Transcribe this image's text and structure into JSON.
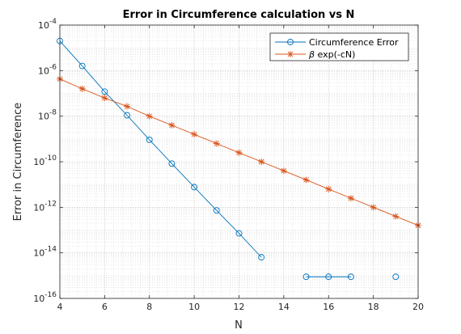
{
  "chart_data": {
    "type": "line",
    "title": "Error in Circumference calculation vs N",
    "xlabel": "N",
    "ylabel": "Error in Circumference",
    "xlim": [
      4,
      20
    ],
    "ylim": [
      1e-16,
      0.0001
    ],
    "yscale": "log",
    "xticks": [
      "4",
      "6",
      "8",
      "10",
      "12",
      "14",
      "16",
      "18",
      "20"
    ],
    "yticks": [
      {
        "base": "10",
        "exp": "-4"
      },
      {
        "base": "10",
        "exp": "-6"
      },
      {
        "base": "10",
        "exp": "-8"
      },
      {
        "base": "10",
        "exp": "-10"
      },
      {
        "base": "10",
        "exp": "-12"
      },
      {
        "base": "10",
        "exp": "-14"
      },
      {
        "base": "10",
        "exp": "-16"
      }
    ],
    "grid": true,
    "minor_grid": true,
    "legend_position": "top-right",
    "series": [
      {
        "name": "Circumference Error",
        "color": "#0072bd",
        "marker": "circle",
        "x": [
          4,
          5,
          6,
          7,
          8,
          9,
          10,
          11,
          12,
          13,
          14,
          15,
          16,
          17,
          18,
          19,
          20
        ],
        "y": [
          2e-05,
          1.6e-06,
          1.2e-07,
          1.1e-08,
          9.2e-10,
          8.3e-11,
          7.7e-12,
          7.3e-13,
          7.2e-14,
          6.4e-15,
          null,
          8.9e-16,
          8.9e-16,
          8.9e-16,
          null,
          8.9e-16,
          null
        ]
      },
      {
        "name": "β exp(-cN)",
        "legend_symbol": "β",
        "legend_rest": " exp(-cN)",
        "color": "#d95319",
        "marker": "star",
        "x": [
          4,
          5,
          6,
          7,
          8,
          9,
          10,
          11,
          12,
          13,
          14,
          15,
          16,
          17,
          18,
          19,
          20
        ],
        "y": [
          4.3e-07,
          1.6e-07,
          6.3e-08,
          2.7e-08,
          1e-08,
          4e-09,
          1.6e-09,
          6.3e-10,
          2.5e-10,
          1e-10,
          4e-11,
          1.6e-11,
          6.3e-12,
          2.5e-12,
          1e-12,
          4e-13,
          1.6e-13
        ]
      }
    ]
  }
}
